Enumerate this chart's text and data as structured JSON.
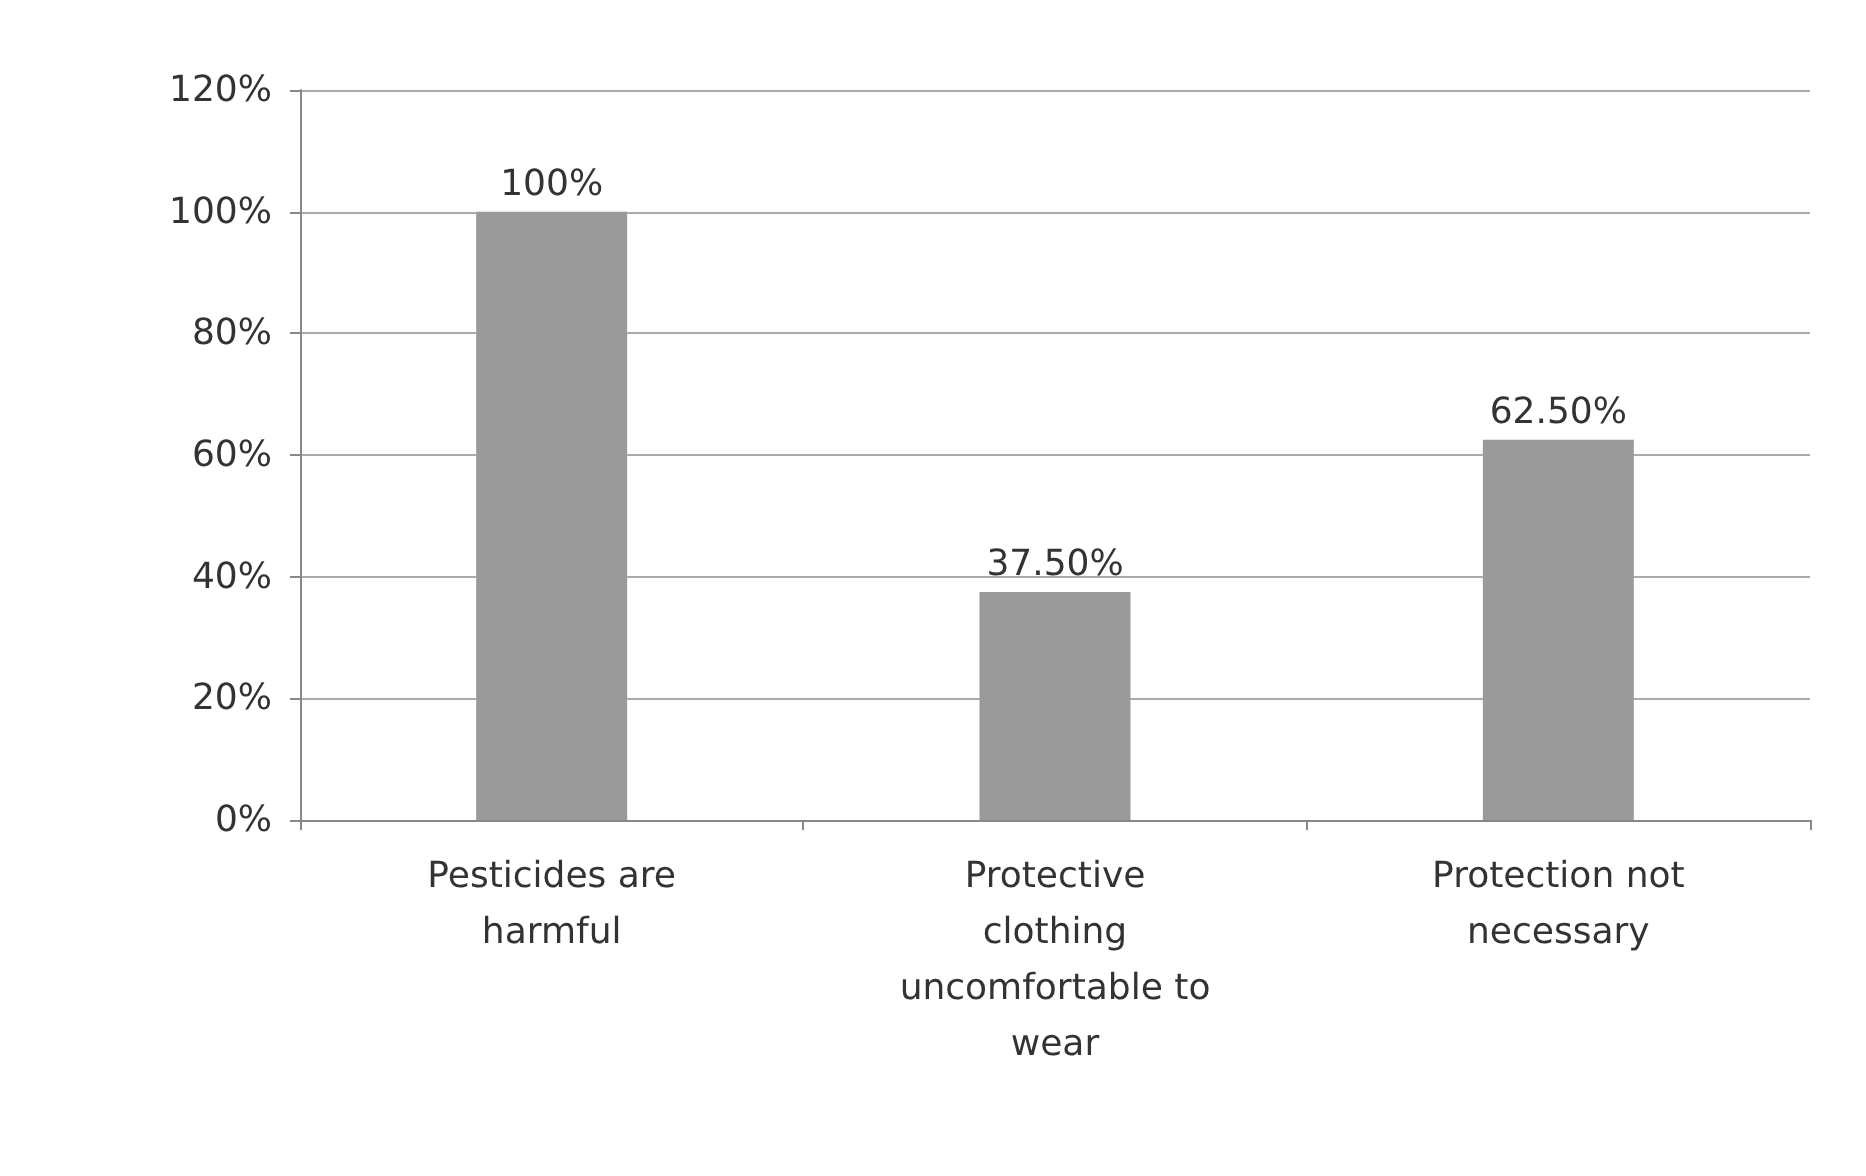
{
  "chart_data": {
    "type": "bar",
    "categories": [
      "Pesticides are harmful",
      "Protective clothing uncomfortable to wear",
      "Protection not necessary"
    ],
    "values": [
      100,
      37.5,
      62.5
    ],
    "value_labels": [
      "100%",
      "37.50%",
      "62.50%"
    ],
    "color": "#9a9a9a",
    "ylim": [
      0,
      120
    ],
    "yticks": [
      {
        "value": 0,
        "label": "0%"
      },
      {
        "value": 20,
        "label": "20%"
      },
      {
        "value": 40,
        "label": "40%"
      },
      {
        "value": 60,
        "label": "60%"
      },
      {
        "value": 80,
        "label": "80%"
      },
      {
        "value": 100,
        "label": "100%"
      },
      {
        "value": 120,
        "label": "120%"
      }
    ],
    "grid": "y"
  }
}
